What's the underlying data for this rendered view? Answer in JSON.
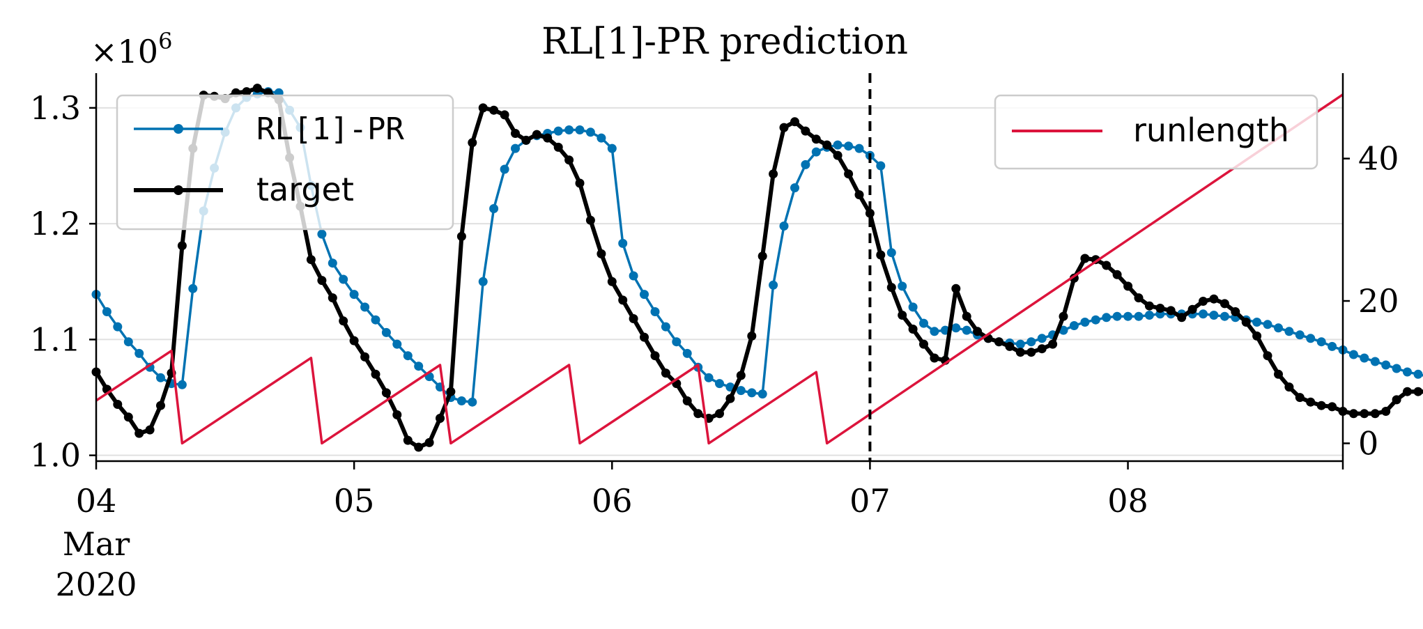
{
  "chart_data": {
    "type": "line",
    "title": "RL[1]-PR prediction",
    "title_font": "monospace-mixed",
    "xlabel": "",
    "ylabel": "",
    "y_left": {
      "ylim": [
        0.995,
        1.33
      ],
      "ticks": [
        1.0,
        1.1,
        1.2,
        1.3
      ],
      "tick_labels": [
        "1.0",
        "1.1",
        "1.2",
        "1.3"
      ],
      "scale_label": "×10",
      "scale_exp": "6",
      "gridlines": [
        1.0,
        1.1,
        1.2,
        1.3
      ]
    },
    "y_right": {
      "ylim": [
        -2.5,
        52
      ],
      "ticks": [
        0,
        20,
        40
      ],
      "tick_labels": [
        "0",
        "20",
        "40"
      ]
    },
    "x_axis": {
      "range": [
        "2020-03-04T00:00",
        "2020-03-08T20:00"
      ],
      "ticks": [
        "2020-03-04",
        "2020-03-05",
        "2020-03-06",
        "2020-03-07",
        "2020-03-08"
      ],
      "tick_labels": [
        "04",
        "05",
        "06",
        "07",
        "08"
      ],
      "first_tick_extra": [
        "Mar",
        "2020"
      ]
    },
    "split_line": "2020-03-07T00:00",
    "grid": "horizontal",
    "legend_left": [
      "RL[1]-PR",
      "target"
    ],
    "legend_right": [
      "runlength"
    ],
    "legend_positions": [
      "upper-left",
      "upper-right"
    ],
    "colors": {
      "prediction": "#0072b2",
      "target": "#000000",
      "runlength": "#dc143c",
      "grid": "#e0e0e0"
    },
    "series": [
      {
        "name": "RL[1]-PR",
        "axis": "left",
        "start": "2020-03-04T00:00",
        "step_hours": 1,
        "values": [
          1.139,
          1.124,
          1.111,
          1.098,
          1.088,
          1.076,
          1.067,
          1.062,
          1.061,
          1.144,
          1.211,
          1.248,
          1.279,
          1.3,
          1.309,
          1.312,
          1.314,
          1.313,
          1.298,
          1.283,
          1.233,
          1.191,
          1.166,
          1.152,
          1.139,
          1.128,
          1.117,
          1.106,
          1.096,
          1.086,
          1.077,
          1.068,
          1.059,
          1.05,
          1.047,
          1.046,
          1.15,
          1.213,
          1.247,
          1.265,
          1.272,
          1.276,
          1.278,
          1.28,
          1.281,
          1.281,
          1.279,
          1.274,
          1.265,
          1.183,
          1.155,
          1.139,
          1.124,
          1.111,
          1.098,
          1.088,
          1.076,
          1.067,
          1.062,
          1.059,
          1.056,
          1.054,
          1.053,
          1.147,
          1.198,
          1.231,
          1.251,
          1.262,
          1.266,
          1.268,
          1.267,
          1.265,
          1.259,
          1.25,
          1.175,
          1.146,
          1.128,
          1.114,
          1.107,
          1.108,
          1.11,
          1.108,
          1.104,
          1.101,
          1.098,
          1.097,
          1.096,
          1.098,
          1.101,
          1.104,
          1.108,
          1.112,
          1.115,
          1.117,
          1.119,
          1.12,
          1.12,
          1.12,
          1.121,
          1.122,
          1.122,
          1.122,
          1.122,
          1.122,
          1.121,
          1.12,
          1.119,
          1.117,
          1.115,
          1.113,
          1.11,
          1.107,
          1.104,
          1.101,
          1.098,
          1.094,
          1.091,
          1.087,
          1.084,
          1.081,
          1.078,
          1.075,
          1.072,
          1.07,
          1.068,
          1.066,
          1.065,
          1.064,
          1.063,
          1.062,
          1.062,
          1.062,
          1.062
        ]
      },
      {
        "name": "target",
        "axis": "left",
        "start": "2020-03-04T00:00",
        "step_hours": 1,
        "values": [
          1.072,
          1.057,
          1.044,
          1.033,
          1.019,
          1.022,
          1.043,
          1.071,
          1.181,
          1.265,
          1.311,
          1.31,
          1.308,
          1.313,
          1.314,
          1.317,
          1.313,
          1.307,
          1.257,
          1.215,
          1.169,
          1.151,
          1.136,
          1.116,
          1.099,
          1.085,
          1.07,
          1.054,
          1.035,
          1.013,
          1.007,
          1.011,
          1.032,
          1.055,
          1.189,
          1.27,
          1.3,
          1.298,
          1.294,
          1.278,
          1.272,
          1.277,
          1.274,
          1.266,
          1.255,
          1.235,
          1.203,
          1.174,
          1.15,
          1.134,
          1.118,
          1.102,
          1.086,
          1.071,
          1.062,
          1.047,
          1.036,
          1.032,
          1.036,
          1.049,
          1.069,
          1.103,
          1.172,
          1.243,
          1.283,
          1.288,
          1.28,
          1.273,
          1.268,
          1.259,
          1.243,
          1.225,
          1.209,
          1.173,
          1.145,
          1.121,
          1.109,
          1.096,
          1.084,
          1.082,
          1.144,
          1.12,
          1.107,
          1.101,
          1.098,
          1.094,
          1.089,
          1.089,
          1.092,
          1.096,
          1.12,
          1.153,
          1.17,
          1.169,
          1.164,
          1.156,
          1.146,
          1.136,
          1.129,
          1.127,
          1.125,
          1.119,
          1.126,
          1.133,
          1.135,
          1.131,
          1.124,
          1.115,
          1.103,
          1.086,
          1.07,
          1.059,
          1.05,
          1.046,
          1.043,
          1.042,
          1.038,
          1.036,
          1.036,
          1.036,
          1.038,
          1.048,
          1.055,
          1.055,
          1.055,
          1.055,
          1.054,
          1.052,
          1.056,
          1.063,
          1.069,
          1.08,
          1.094,
          1.093
        ]
      },
      {
        "name": "runlength",
        "axis": "right",
        "points": [
          [
            "2020-03-04T00:00",
            6
          ],
          [
            "2020-03-04T07:00",
            13
          ],
          [
            "2020-03-04T08:00",
            0
          ],
          [
            "2020-03-04T20:00",
            12
          ],
          [
            "2020-03-04T21:00",
            0
          ],
          [
            "2020-03-05T08:00",
            11
          ],
          [
            "2020-03-05T09:00",
            0
          ],
          [
            "2020-03-05T20:00",
            11
          ],
          [
            "2020-03-05T21:00",
            0
          ],
          [
            "2020-03-06T08:00",
            11
          ],
          [
            "2020-03-06T09:00",
            0
          ],
          [
            "2020-03-06T19:00",
            10
          ],
          [
            "2020-03-06T20:00",
            0
          ],
          [
            "2020-03-08T20:00",
            49
          ]
        ]
      }
    ]
  }
}
